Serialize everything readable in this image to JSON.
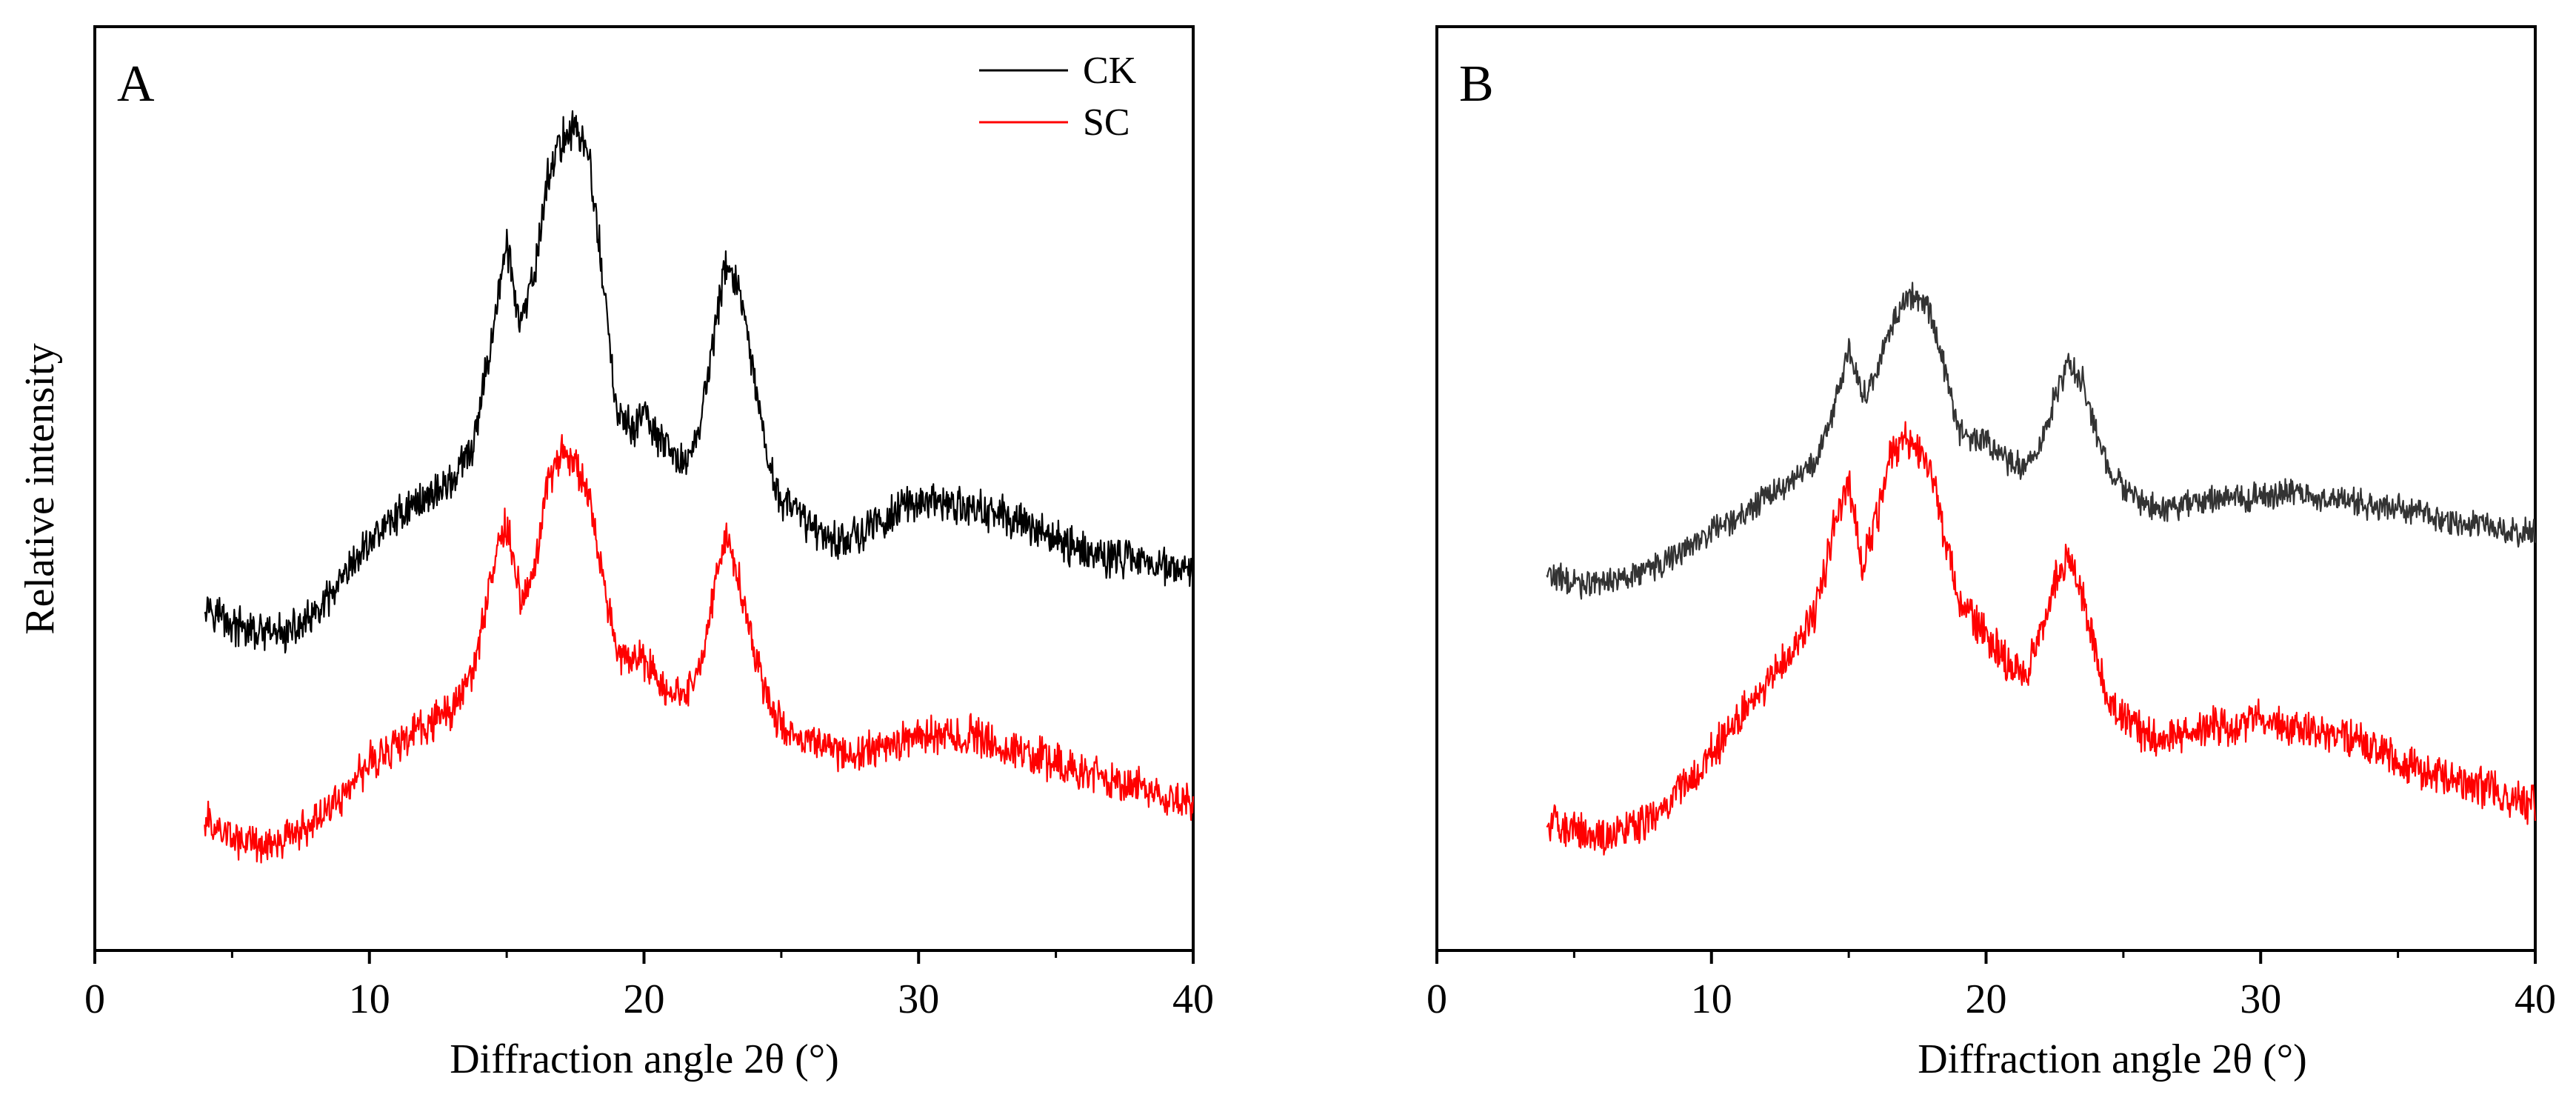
{
  "figure": {
    "ylabel": "Relative intensity"
  },
  "chart_data": [
    {
      "type": "line",
      "panel": "A",
      "xlabel": "Diffraction angle 2θ (°)",
      "ylabel": "Relative intensity",
      "xlim": [
        0,
        40
      ],
      "ylim": [
        0,
        1
      ],
      "xticks": [
        0,
        10,
        20,
        30,
        40
      ],
      "xtick_labels": [
        "0",
        "10",
        "20",
        "30",
        "40"
      ],
      "yticks_shown": false,
      "legend": {
        "placement": "top-right",
        "entries": [
          "CK",
          "SC"
        ]
      },
      "series": [
        {
          "name": "CK",
          "color": "#000000",
          "noise": 0.018,
          "x": [
            4,
            5,
            6,
            7,
            8,
            9,
            10,
            11,
            12,
            13,
            13.8,
            14.5,
            15,
            15.5,
            16,
            16.5,
            17,
            17.5,
            18,
            18.5,
            19,
            19.5,
            20,
            20.5,
            21,
            21.5,
            22,
            22.5,
            23,
            23.5,
            24,
            24.5,
            25,
            26,
            27,
            28,
            29,
            30,
            31,
            32,
            33,
            34,
            35,
            36,
            37,
            38,
            39,
            40
          ],
          "y": [
            0.36,
            0.33,
            0.32,
            0.32,
            0.34,
            0.38,
            0.43,
            0.46,
            0.48,
            0.5,
            0.54,
            0.68,
            0.78,
            0.68,
            0.74,
            0.86,
            0.9,
            0.92,
            0.88,
            0.74,
            0.58,
            0.56,
            0.58,
            0.55,
            0.53,
            0.52,
            0.56,
            0.66,
            0.76,
            0.72,
            0.62,
            0.52,
            0.48,
            0.45,
            0.43,
            0.44,
            0.46,
            0.48,
            0.47,
            0.47,
            0.46,
            0.45,
            0.43,
            0.42,
            0.41,
            0.41,
            0.4,
            0.39
          ]
        },
        {
          "name": "SC",
          "color": "#ff0000",
          "noise": 0.018,
          "x": [
            4,
            5,
            6,
            7,
            8,
            9,
            10,
            11,
            12,
            13,
            13.8,
            14.5,
            15,
            15.5,
            16,
            16.5,
            17,
            17.5,
            18,
            18.5,
            19,
            19.5,
            20,
            20.5,
            21,
            21.5,
            22,
            22.5,
            23,
            23.5,
            24,
            24.5,
            25,
            26,
            27,
            28,
            29,
            30,
            31,
            32,
            33,
            34,
            35,
            36,
            37,
            38,
            39,
            40
          ],
          "y": [
            0.1,
            0.08,
            0.07,
            0.08,
            0.1,
            0.13,
            0.17,
            0.19,
            0.21,
            0.23,
            0.28,
            0.4,
            0.45,
            0.36,
            0.4,
            0.5,
            0.53,
            0.52,
            0.48,
            0.38,
            0.3,
            0.29,
            0.29,
            0.27,
            0.25,
            0.25,
            0.28,
            0.36,
            0.44,
            0.38,
            0.3,
            0.24,
            0.21,
            0.19,
            0.18,
            0.18,
            0.19,
            0.2,
            0.2,
            0.2,
            0.19,
            0.18,
            0.17,
            0.16,
            0.15,
            0.14,
            0.13,
            0.12
          ]
        }
      ]
    },
    {
      "type": "line",
      "panel": "B",
      "xlabel": "Diffraction angle 2θ (°)",
      "ylabel": "",
      "xlim": [
        0,
        40
      ],
      "ylim": [
        0,
        1
      ],
      "xticks": [
        0,
        10,
        20,
        30,
        40
      ],
      "xtick_labels": [
        "0",
        "10",
        "20",
        "30",
        "40"
      ],
      "yticks_shown": false,
      "legend": null,
      "series": [
        {
          "name": "CK",
          "color": "#333333",
          "noise": 0.013,
          "x": [
            4,
            5,
            6,
            7,
            8,
            9,
            10,
            11,
            12,
            13,
            13.8,
            14.5,
            15,
            15.5,
            16,
            16.5,
            17,
            17.5,
            18,
            18.5,
            19,
            19.5,
            20,
            20.5,
            21,
            21.5,
            22,
            22.5,
            23,
            23.5,
            24,
            24.5,
            25,
            26,
            27,
            28,
            29,
            30,
            31,
            32,
            33,
            34,
            35,
            36,
            37,
            38,
            39,
            40
          ],
          "y": [
            0.39,
            0.38,
            0.38,
            0.39,
            0.4,
            0.42,
            0.44,
            0.46,
            0.48,
            0.5,
            0.52,
            0.59,
            0.66,
            0.6,
            0.62,
            0.68,
            0.71,
            0.72,
            0.7,
            0.63,
            0.56,
            0.55,
            0.55,
            0.53,
            0.52,
            0.52,
            0.54,
            0.6,
            0.64,
            0.62,
            0.56,
            0.51,
            0.49,
            0.47,
            0.47,
            0.48,
            0.48,
            0.48,
            0.49,
            0.48,
            0.48,
            0.47,
            0.47,
            0.46,
            0.45,
            0.45,
            0.44,
            0.44
          ]
        },
        {
          "name": "SC",
          "color": "#ff0000",
          "noise": 0.018,
          "x": [
            4,
            5,
            6,
            7,
            8,
            9,
            10,
            11,
            12,
            13,
            13.8,
            14.5,
            15,
            15.5,
            16,
            16.5,
            17,
            17.5,
            18,
            18.5,
            19,
            19.5,
            20,
            20.5,
            21,
            21.5,
            22,
            22.5,
            23,
            23.5,
            24,
            24.5,
            25,
            26,
            27,
            28,
            29,
            30,
            31,
            32,
            33,
            34,
            35,
            36,
            37,
            38,
            39,
            40
          ],
          "y": [
            0.1,
            0.09,
            0.08,
            0.09,
            0.11,
            0.14,
            0.18,
            0.22,
            0.26,
            0.3,
            0.35,
            0.45,
            0.5,
            0.4,
            0.45,
            0.53,
            0.55,
            0.54,
            0.52,
            0.43,
            0.36,
            0.34,
            0.32,
            0.3,
            0.28,
            0.28,
            0.32,
            0.38,
            0.41,
            0.37,
            0.3,
            0.24,
            0.22,
            0.2,
            0.2,
            0.21,
            0.21,
            0.22,
            0.21,
            0.21,
            0.2,
            0.19,
            0.17,
            0.16,
            0.15,
            0.14,
            0.13,
            0.12
          ]
        }
      ]
    }
  ]
}
